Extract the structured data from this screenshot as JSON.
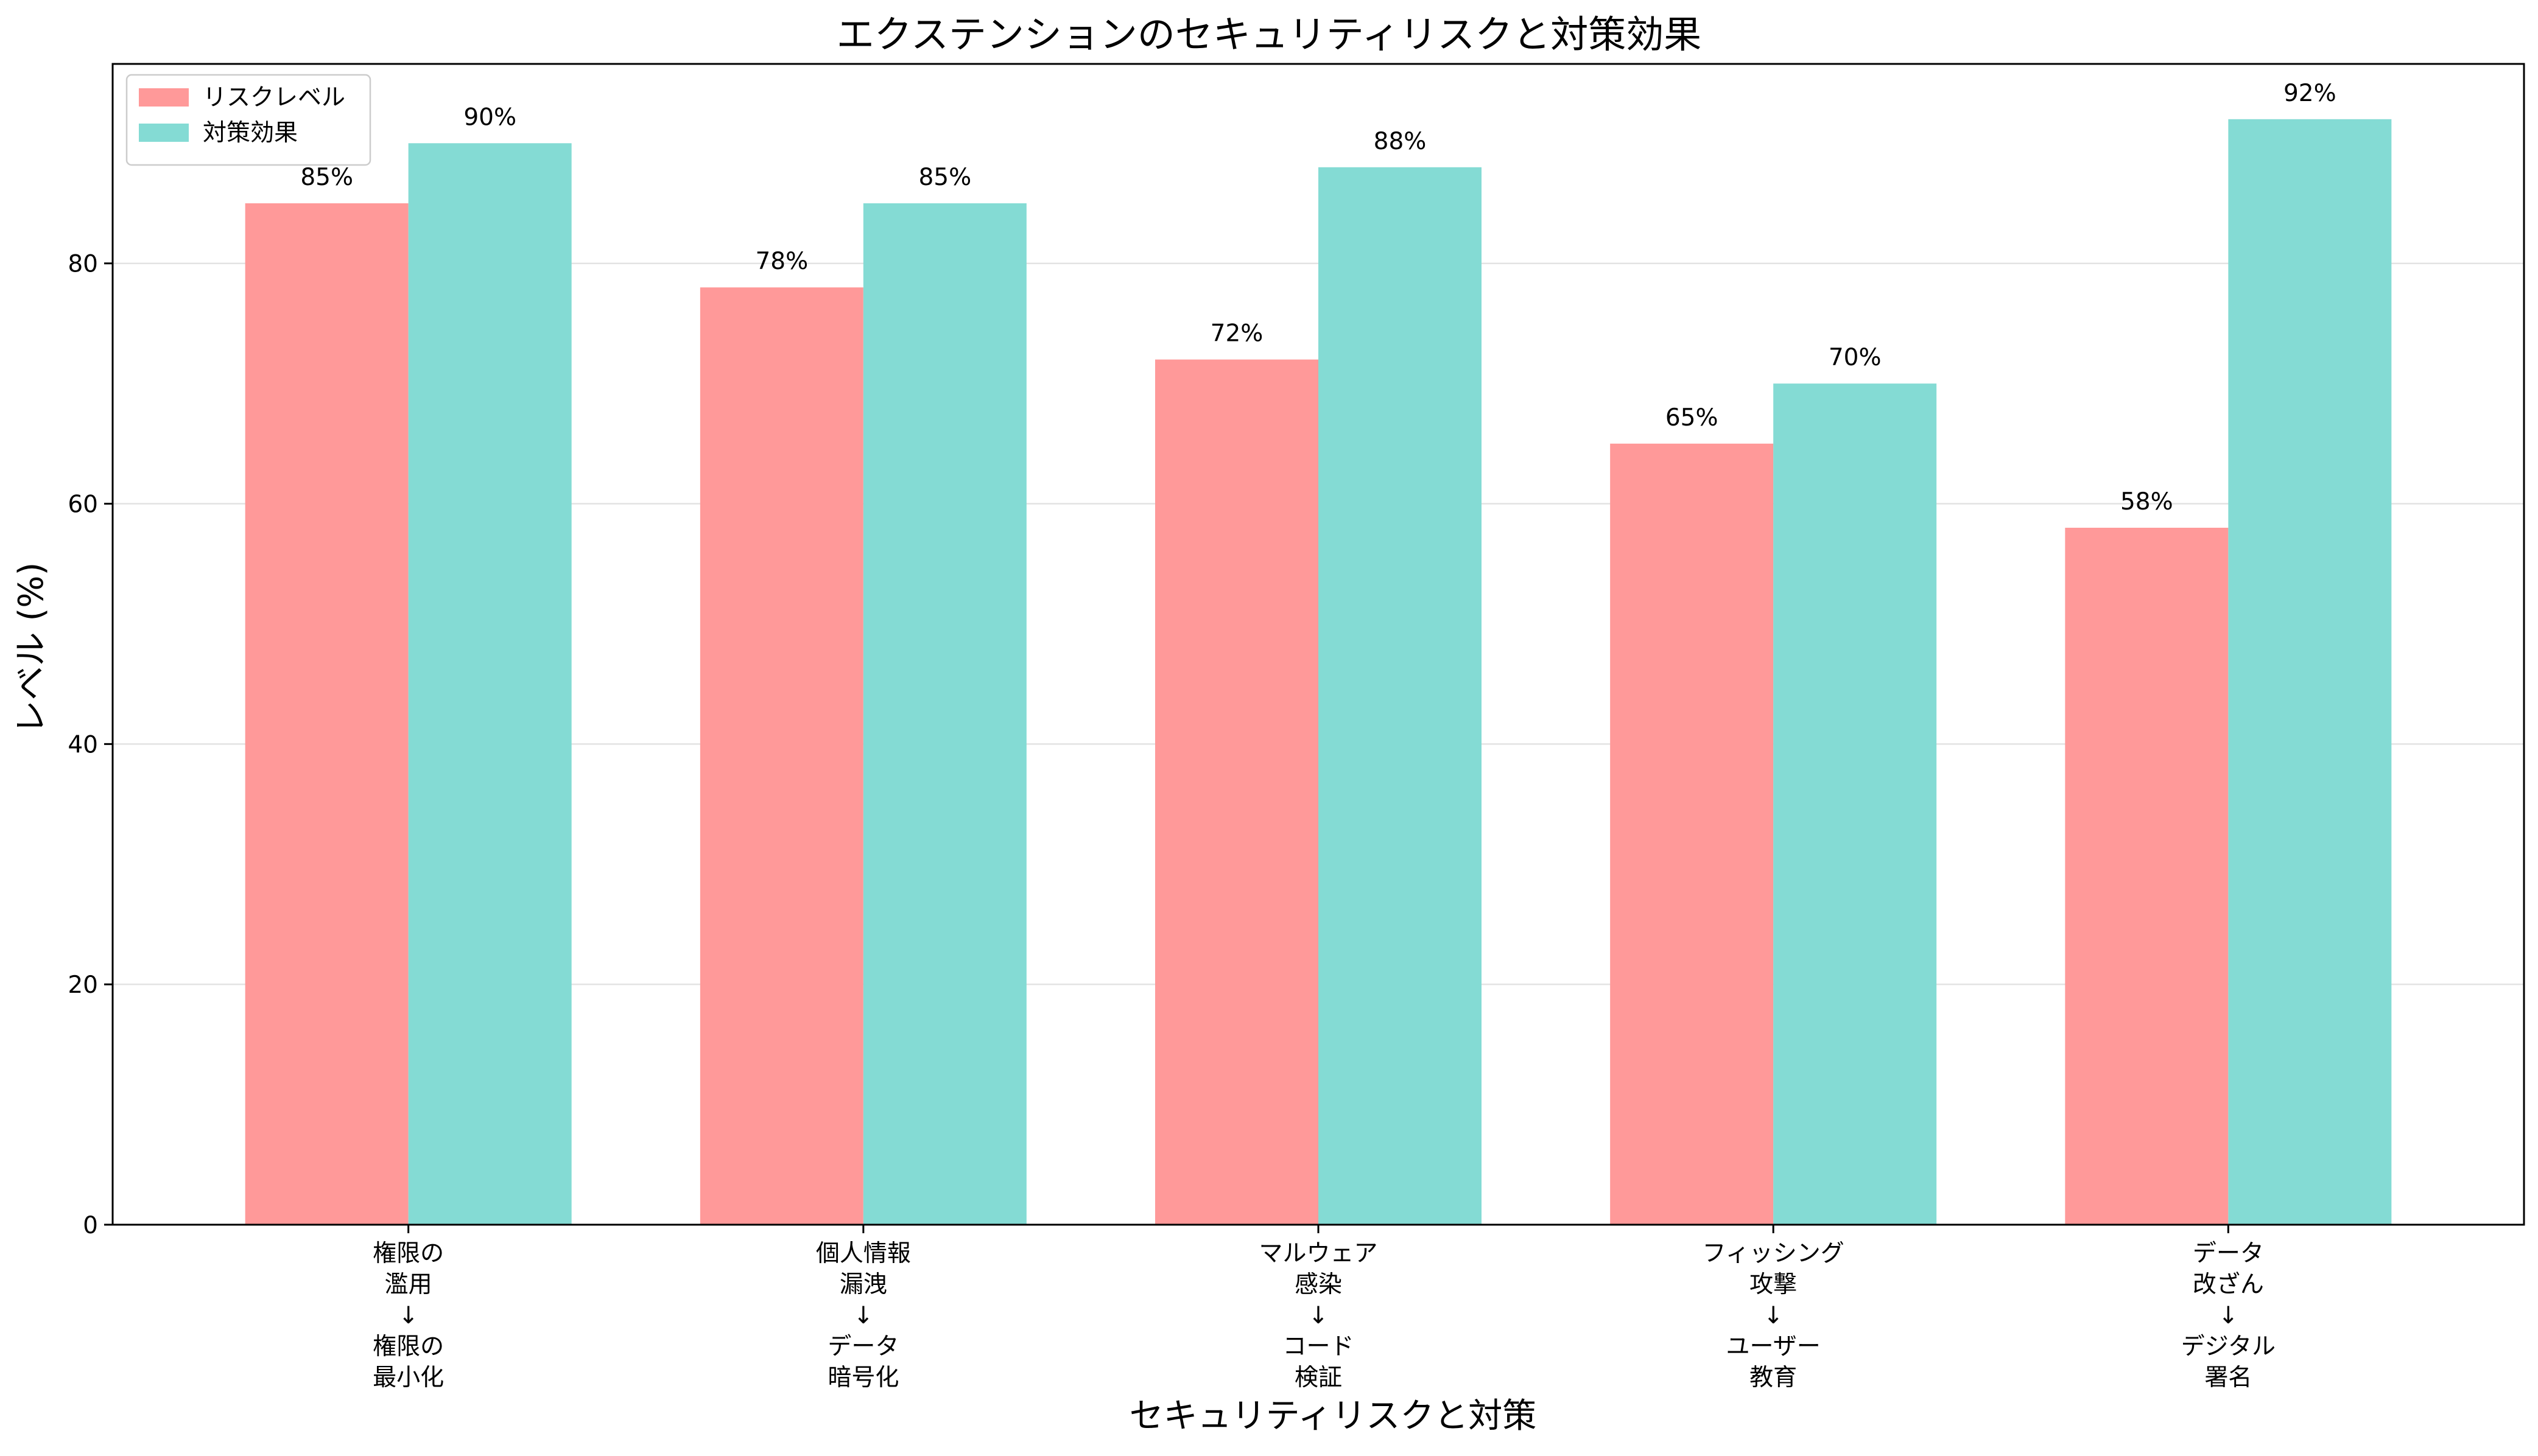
{
  "chart_data": {
    "type": "bar",
    "title": "エクステンションのセキュリティリスクと対策効果",
    "xlabel": "セキュリティリスクと対策",
    "ylabel": "レベル (%)",
    "ylim": [
      0,
      96.6
    ],
    "yticks": [
      0,
      20,
      40,
      60,
      80
    ],
    "grid": "y",
    "legend_position": "top-left",
    "categories": [
      [
        "権限の",
        "濫用",
        "↓",
        "権限の",
        "最小化"
      ],
      [
        "個人情報",
        "漏洩",
        "↓",
        "データ",
        "暗号化"
      ],
      [
        "マルウェア",
        "感染",
        "↓",
        "コード",
        "検証"
      ],
      [
        "フィッシング",
        "攻撃",
        "↓",
        "ユーザー",
        "教育"
      ],
      [
        "データ",
        "改ざん",
        "↓",
        "デジタル",
        "署名"
      ]
    ],
    "series": [
      {
        "name": "リスクレベル",
        "color": "#FF9999",
        "values": [
          85,
          78,
          72,
          65,
          58
        ],
        "labels": [
          "85%",
          "78%",
          "72%",
          "65%",
          "58%"
        ]
      },
      {
        "name": "対策効果",
        "color": "#84DBD4",
        "values": [
          90,
          85,
          88,
          70,
          92
        ],
        "labels": [
          "90%",
          "85%",
          "88%",
          "70%",
          "92%"
        ]
      }
    ]
  }
}
